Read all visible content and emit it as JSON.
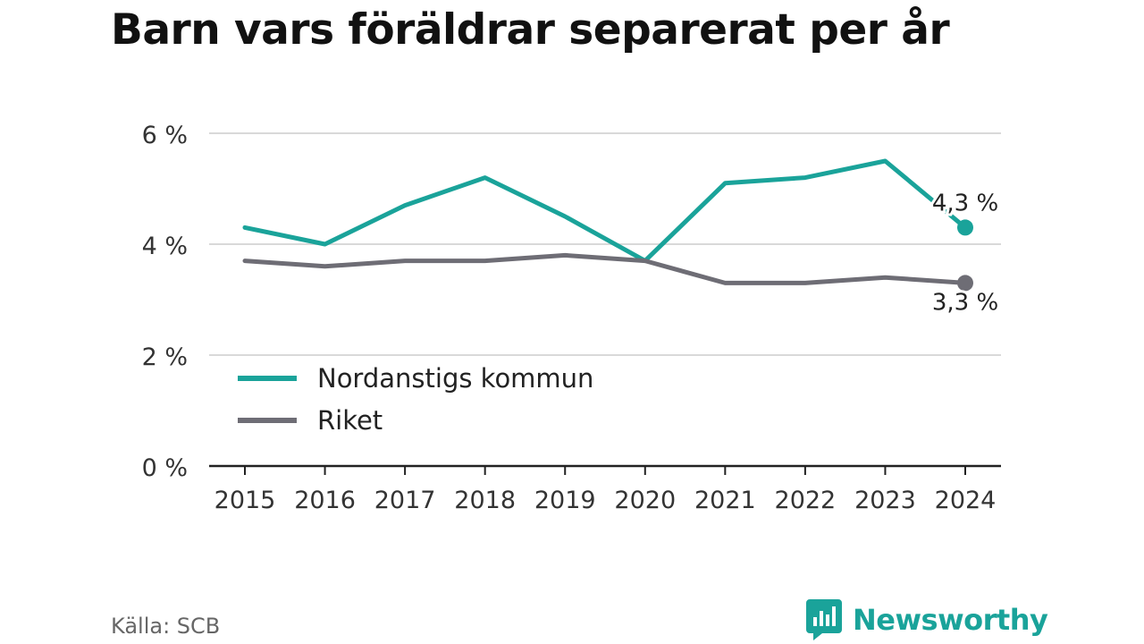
{
  "title": "Barn vars föräldrar separerat per år",
  "source": "Källa: SCB",
  "brand": {
    "name": "Newsworthy",
    "icon": "bar-chart-speech-bubble-icon",
    "color": "#1aa39a"
  },
  "chart_data": {
    "type": "line",
    "x": [
      "2015",
      "2016",
      "2017",
      "2018",
      "2019",
      "2020",
      "2021",
      "2022",
      "2023",
      "2024"
    ],
    "ylim": [
      0,
      6
    ],
    "yticks": [
      0,
      2,
      4,
      6
    ],
    "ytick_labels": [
      "0 %",
      "2 %",
      "4 %",
      "6 %"
    ],
    "grid": true,
    "legend_position": "bottom-left",
    "series": [
      {
        "name": "Nordanstigs kommun",
        "color": "#1aa39a",
        "values": [
          4.3,
          4.0,
          4.7,
          5.2,
          4.5,
          3.7,
          5.1,
          5.2,
          5.5,
          4.3
        ],
        "end_label": "4,3 %"
      },
      {
        "name": "Riket",
        "color": "#6e6d75",
        "values": [
          3.7,
          3.6,
          3.7,
          3.7,
          3.8,
          3.7,
          3.3,
          3.3,
          3.4,
          3.3
        ],
        "end_label": "3,3 %"
      }
    ]
  }
}
